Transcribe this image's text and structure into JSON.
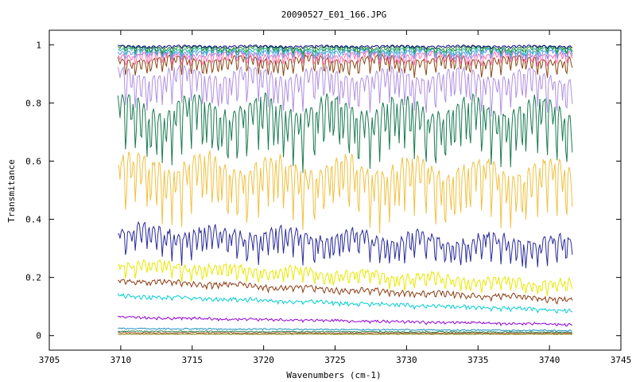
{
  "chart_data": {
    "type": "line",
    "title": "20090527_E01_166.JPG",
    "xlabel": "Wavenumbers (cm-1)",
    "ylabel": "Transmitance",
    "xlim": [
      3705,
      3745
    ],
    "ylim": [
      -0.05,
      1.05
    ],
    "grid": false,
    "legend": "none",
    "x_ticks": [
      3705,
      3710,
      3715,
      3720,
      3725,
      3730,
      3735,
      3740,
      3745
    ],
    "x_tick_labels": [
      "3705",
      "3710",
      "3715",
      "3720",
      "3725",
      "3730",
      "3735",
      "3740",
      "3745"
    ],
    "y_ticks": [
      0,
      0.2,
      0.4,
      0.6,
      0.8,
      1
    ],
    "y_tick_labels": [
      "0",
      "0.2",
      "0.4",
      "0.6",
      "0.8",
      "1"
    ],
    "x_range": [
      3709.8,
      3741.6
    ],
    "series": [
      {
        "color": "#808000",
        "values_x": [
          3709.8,
          3741.6
        ],
        "values_y": [
          0.005,
          0.005
        ],
        "dip_depth": 0.0,
        "noise": 0.001
      },
      {
        "color": "#a0522d",
        "values_x": [
          3709.8,
          3741.6
        ],
        "values_y": [
          0.01,
          0.008
        ],
        "dip_depth": 0.0,
        "noise": 0.002
      },
      {
        "color": "#2e8b57",
        "values_x": [
          3709.8,
          3741.6
        ],
        "values_y": [
          0.015,
          0.012
        ],
        "dip_depth": 0.0,
        "noise": 0.002
      },
      {
        "color": "#1f8fbf",
        "values_x": [
          3709.8,
          3741.6
        ],
        "values_y": [
          0.025,
          0.018
        ],
        "dip_depth": 0.002,
        "noise": 0.002
      },
      {
        "color": "#9400d3",
        "values_x": [
          3709.8,
          3741.6
        ],
        "values_y": [
          0.065,
          0.04
        ],
        "dip_depth": 0.006,
        "noise": 0.003
      },
      {
        "color": "#00ced1",
        "values_x": [
          3709.8,
          3741.6
        ],
        "values_y": [
          0.14,
          0.09
        ],
        "dip_depth": 0.012,
        "noise": 0.004
      },
      {
        "color": "#8b3a0f",
        "values_x": [
          3709.8,
          3741.6
        ],
        "values_y": [
          0.195,
          0.13
        ],
        "dip_depth": 0.02,
        "noise": 0.005
      },
      {
        "color": "#e8e800",
        "values_x": [
          3709.8,
          3741.6
        ],
        "values_y": [
          0.255,
          0.185
        ],
        "dip_depth": 0.05,
        "noise": 0.008
      },
      {
        "color": "#2a2a9a",
        "values_x": [
          3709.8,
          3741.6
        ],
        "values_y": [
          0.37,
          0.33
        ],
        "dip_depth": 0.1,
        "noise": 0.012
      },
      {
        "color": "#f0c040",
        "values_x": [
          3709.8,
          3741.6
        ],
        "values_y": [
          0.6,
          0.58
        ],
        "dip_depth": 0.2,
        "noise": 0.015
      },
      {
        "color": "#1a7a50",
        "values_x": [
          3709.8,
          3741.6
        ],
        "values_y": [
          0.8,
          0.79
        ],
        "dip_depth": 0.2,
        "noise": 0.012
      },
      {
        "color": "#b090e0",
        "values_x": [
          3709.8,
          3741.6
        ],
        "values_y": [
          0.91,
          0.9
        ],
        "dip_depth": 0.13,
        "noise": 0.008
      },
      {
        "color": "#8b4513",
        "values_x": [
          3709.8,
          3741.6
        ],
        "values_y": [
          0.955,
          0.955
        ],
        "dip_depth": 0.06,
        "noise": 0.005
      },
      {
        "color": "#ff69b4",
        "values_x": [
          3709.8,
          3741.6
        ],
        "values_y": [
          0.97,
          0.97
        ],
        "dip_depth": 0.04,
        "noise": 0.004
      },
      {
        "color": "#6495ed",
        "values_x": [
          3709.8,
          3741.6
        ],
        "values_y": [
          0.98,
          0.98
        ],
        "dip_depth": 0.03,
        "noise": 0.003
      },
      {
        "color": "#20b2aa",
        "values_x": [
          3709.8,
          3741.6
        ],
        "values_y": [
          0.987,
          0.987
        ],
        "dip_depth": 0.025,
        "noise": 0.003
      },
      {
        "color": "#228b22",
        "values_x": [
          3709.8,
          3741.6
        ],
        "values_y": [
          0.993,
          0.993
        ],
        "dip_depth": 0.02,
        "noise": 0.002
      },
      {
        "color": "#000080",
        "values_x": [
          3709.8,
          3741.6
        ],
        "values_y": [
          0.997,
          0.997
        ],
        "dip_depth": 0.01,
        "noise": 0.001
      }
    ]
  }
}
